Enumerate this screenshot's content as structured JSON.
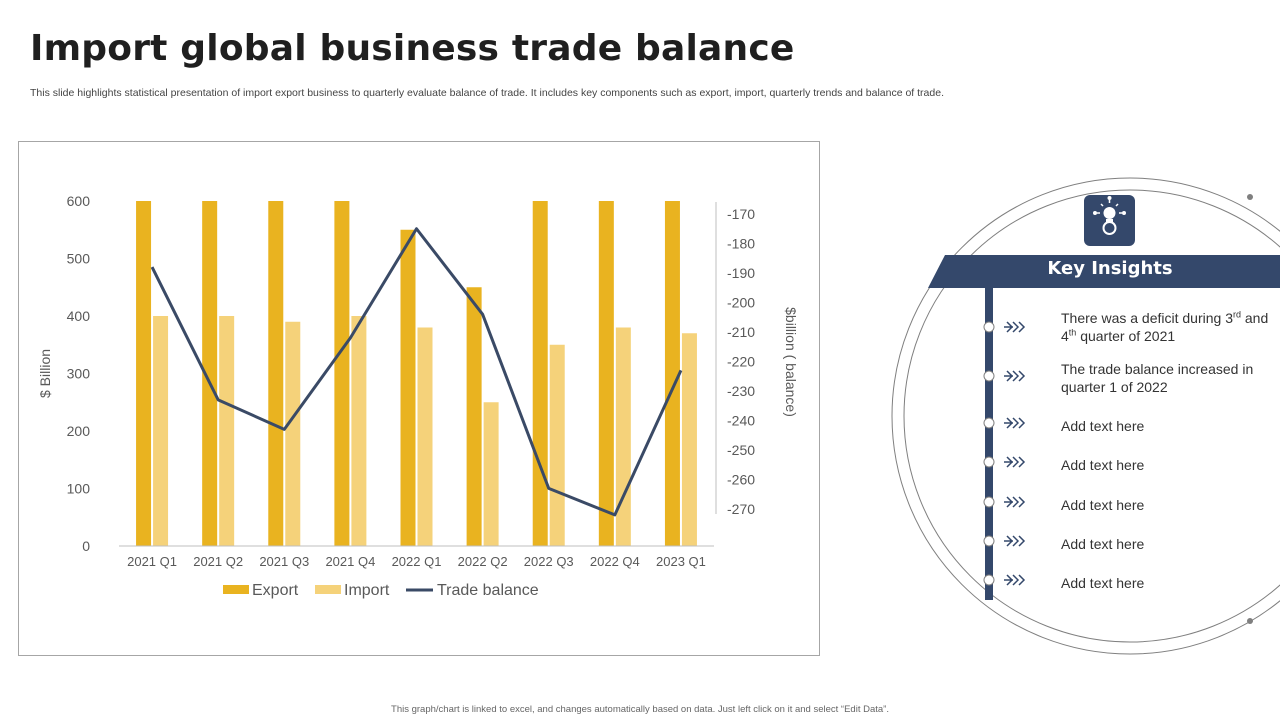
{
  "page": {
    "title": "Import global business trade balance",
    "subtitle": "This slide highlights statistical presentation of import export business to quarterly evaluate balance of trade. It includes key components such as export, import, quarterly trends and balance of trade.",
    "footer": "This graph/chart is linked to excel, and changes automatically based on data. Just left click on it and select “Edit Data”."
  },
  "chart_data": {
    "type": "bar",
    "title": "",
    "categories": [
      "2021 Q1",
      "2021 Q2",
      "2021 Q3",
      "2021 Q4",
      "2022 Q1",
      "2022 Q2",
      "2022 Q3",
      "2022 Q4",
      "2023 Q1"
    ],
    "series": [
      {
        "name": "Export",
        "type": "bar",
        "axis": "left",
        "color": "#E9B320",
        "values": [
          600,
          600,
          600,
          600,
          550,
          450,
          600,
          600,
          600
        ]
      },
      {
        "name": "Import",
        "type": "bar",
        "axis": "left",
        "color": "#F5D27A",
        "values": [
          400,
          400,
          390,
          400,
          380,
          250,
          350,
          380,
          370
        ]
      },
      {
        "name": "Trade balance",
        "type": "line",
        "axis": "right",
        "color": "#3A4A66",
        "values": [
          -188,
          -233,
          -243,
          -212,
          -175,
          -204,
          -263,
          -272,
          -223
        ]
      }
    ],
    "ylabel": "$ Billion",
    "ylim": [
      0,
      600
    ],
    "yticks": [
      0,
      100,
      200,
      300,
      400,
      500,
      600
    ],
    "y2label": "$billion ( balance)",
    "y2lim": [
      -270,
      -170
    ],
    "y2ticks": [
      -170,
      -180,
      -190,
      -200,
      -210,
      -220,
      -230,
      -240,
      -250,
      -260,
      -270
    ],
    "legend": [
      "Export",
      "Import",
      "Trade balance"
    ],
    "legend_position": "bottom",
    "grid": false
  },
  "insights": {
    "heading": "Key Insights",
    "icon": "lightbulb-gear-icon",
    "accent": "#34486B",
    "items": [
      {
        "pre": "There was a deficit during 3",
        "sup1": "rd",
        "mid": " and 4",
        "sup2": "th",
        "post": " quarter of 2021"
      },
      {
        "text": "The trade balance increased in quarter 1 of 2022"
      },
      {
        "text": "Add text here"
      },
      {
        "text": "Add text here"
      },
      {
        "text": "Add text here"
      },
      {
        "text": "Add text here"
      },
      {
        "text": "Add text here"
      }
    ]
  }
}
